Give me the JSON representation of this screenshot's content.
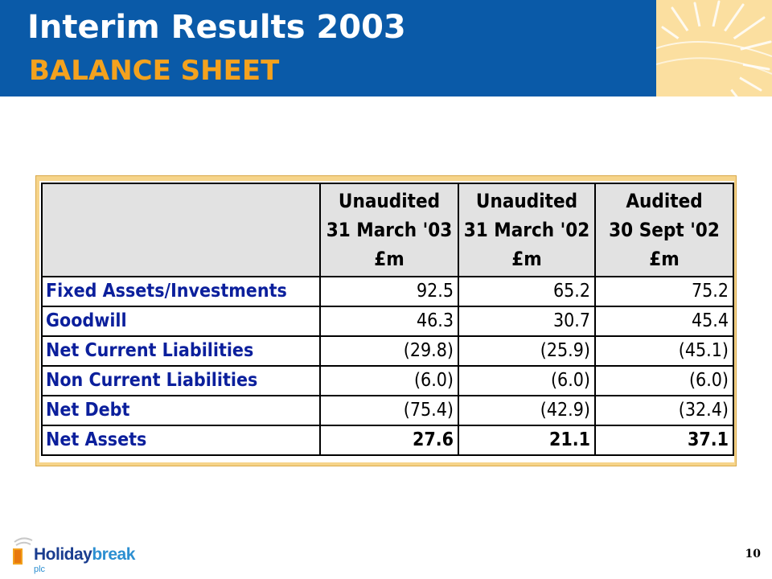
{
  "slide": {
    "title": "Interim Results 2003",
    "subtitle": "BALANCE SHEET",
    "page_number": "10"
  },
  "colors": {
    "header_blue": "#0a5aa8",
    "subtitle_orange": "#f4a21e",
    "label_blue": "#0b1f9c",
    "frame_gold": "#f6d48a",
    "header_gray": "#e2e2e2"
  },
  "table": {
    "headers": [
      {
        "l1": "Unaudited",
        "l2": "31 March '03",
        "l3": "£m"
      },
      {
        "l1": "Unaudited",
        "l2": "31 March '02",
        "l3": "£m"
      },
      {
        "l1": "Audited",
        "l2": "30 Sept '02",
        "l3": "£m"
      }
    ],
    "rows": [
      {
        "label": "Fixed Assets/Investments",
        "v": [
          "92.5",
          "65.2",
          "75.2"
        ]
      },
      {
        "label": "Goodwill",
        "v": [
          "46.3",
          "30.7",
          "45.4"
        ]
      },
      {
        "label": "Net Current Liabilities",
        "v": [
          "(29.8)",
          "(25.9)",
          "(45.1)"
        ]
      },
      {
        "label": "Non Current Liabilities",
        "v": [
          "(6.0)",
          "(6.0)",
          "(6.0)"
        ]
      },
      {
        "label": "Net Debt",
        "v": [
          "(75.4)",
          "(42.9)",
          "(32.4)"
        ]
      },
      {
        "label": "Net Assets",
        "v": [
          "27.6",
          "21.1",
          "37.1"
        ]
      }
    ]
  },
  "logo": {
    "word1": "Holiday",
    "word2": "break",
    "suffix": "plc",
    "icon": "sun-house-logo-icon"
  },
  "decor": {
    "icon": "sun-rays-icon"
  }
}
